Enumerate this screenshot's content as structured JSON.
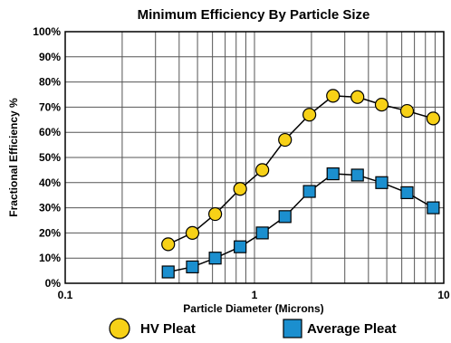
{
  "chart_data": {
    "type": "line",
    "title": "Minimum Efficiency By Particle Size",
    "xlabel": "Particle Diameter (Microns)",
    "ylabel": "Fractional Efficiency %",
    "xscale": "log",
    "xlim": [
      0.1,
      10
    ],
    "ylim": [
      0,
      100
    ],
    "xticks": [
      "0.1",
      "1",
      "10"
    ],
    "yticks": [
      "0%",
      "10%",
      "20%",
      "30%",
      "40%",
      "50%",
      "60%",
      "70%",
      "80%",
      "90%",
      "100%"
    ],
    "grid": true,
    "legend_position": "bottom",
    "series": [
      {
        "name": "HV Pleat",
        "marker": "circle",
        "color": "#f7d117",
        "x": [
          0.35,
          0.47,
          0.62,
          0.84,
          1.1,
          1.45,
          1.95,
          2.6,
          3.5,
          4.7,
          6.4,
          8.8
        ],
        "y": [
          15.5,
          20,
          27.5,
          37.5,
          45,
          57,
          67,
          74.5,
          74,
          71,
          68.5,
          65.5
        ]
      },
      {
        "name": "Average Pleat",
        "marker": "square",
        "color": "#1b8fcf",
        "x": [
          0.35,
          0.47,
          0.62,
          0.84,
          1.1,
          1.45,
          1.95,
          2.6,
          3.5,
          4.7,
          6.4,
          8.8
        ],
        "y": [
          4.5,
          6.5,
          10,
          14.5,
          20,
          26.5,
          36.5,
          43.5,
          43,
          40,
          36,
          30
        ]
      }
    ]
  }
}
